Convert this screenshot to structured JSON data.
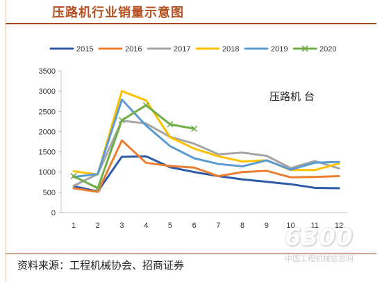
{
  "header": {
    "title": "压路机行业销量示意图"
  },
  "footer": {
    "source": "资料来源：工程机械协会、招商证券"
  },
  "watermark": {
    "number": "6300",
    "site": "中国工程机械信息网"
  },
  "chart_data": {
    "type": "line",
    "title": "",
    "xlabel": "",
    "ylabel": "",
    "annotation": "压路机 台",
    "x": [
      1,
      2,
      3,
      4,
      5,
      6,
      7,
      8,
      9,
      10,
      11,
      12
    ],
    "xticks": [
      "1",
      "2",
      "3",
      "4",
      "5",
      "6",
      "7",
      "8",
      "9",
      "10",
      "11",
      "12"
    ],
    "ylim": [
      0,
      3500
    ],
    "yticks": [
      "0",
      "500",
      "1000",
      "1500",
      "2000",
      "2500",
      "3000",
      "3500"
    ],
    "ytick_values": [
      0,
      500,
      1000,
      1500,
      2000,
      2500,
      3000,
      3500
    ],
    "grid": false,
    "legend_position": "top",
    "series": [
      {
        "name": "2015",
        "color": "#2e5aa7",
        "marker": "none",
        "values": [
          650,
          520,
          1380,
          1390,
          1120,
          1000,
          900,
          820,
          760,
          700,
          610,
          600
        ]
      },
      {
        "name": "2016",
        "color": "#ed7d31",
        "marker": "none",
        "values": [
          600,
          510,
          1780,
          1230,
          1150,
          1110,
          900,
          1000,
          1030,
          870,
          880,
          900
        ]
      },
      {
        "name": "2017",
        "color": "#a5a5a5",
        "marker": "none",
        "values": [
          660,
          950,
          2270,
          2200,
          1870,
          1700,
          1440,
          1480,
          1400,
          1100,
          1270,
          1090
        ]
      },
      {
        "name": "2018",
        "color": "#ffc000",
        "marker": "none",
        "values": [
          1020,
          940,
          3000,
          2770,
          1860,
          1580,
          1390,
          1260,
          1290,
          1050,
          1050,
          1210
        ]
      },
      {
        "name": "2019",
        "color": "#5b9bd5",
        "marker": "none",
        "values": [
          880,
          950,
          2790,
          2150,
          1640,
          1340,
          1200,
          1140,
          1290,
          1060,
          1230,
          1250
        ]
      },
      {
        "name": "2020",
        "color": "#70ad47",
        "marker": "x",
        "values": [
          900,
          600,
          2280,
          2650,
          2180,
          2070,
          null,
          null,
          null,
          null,
          null,
          null
        ]
      }
    ]
  }
}
